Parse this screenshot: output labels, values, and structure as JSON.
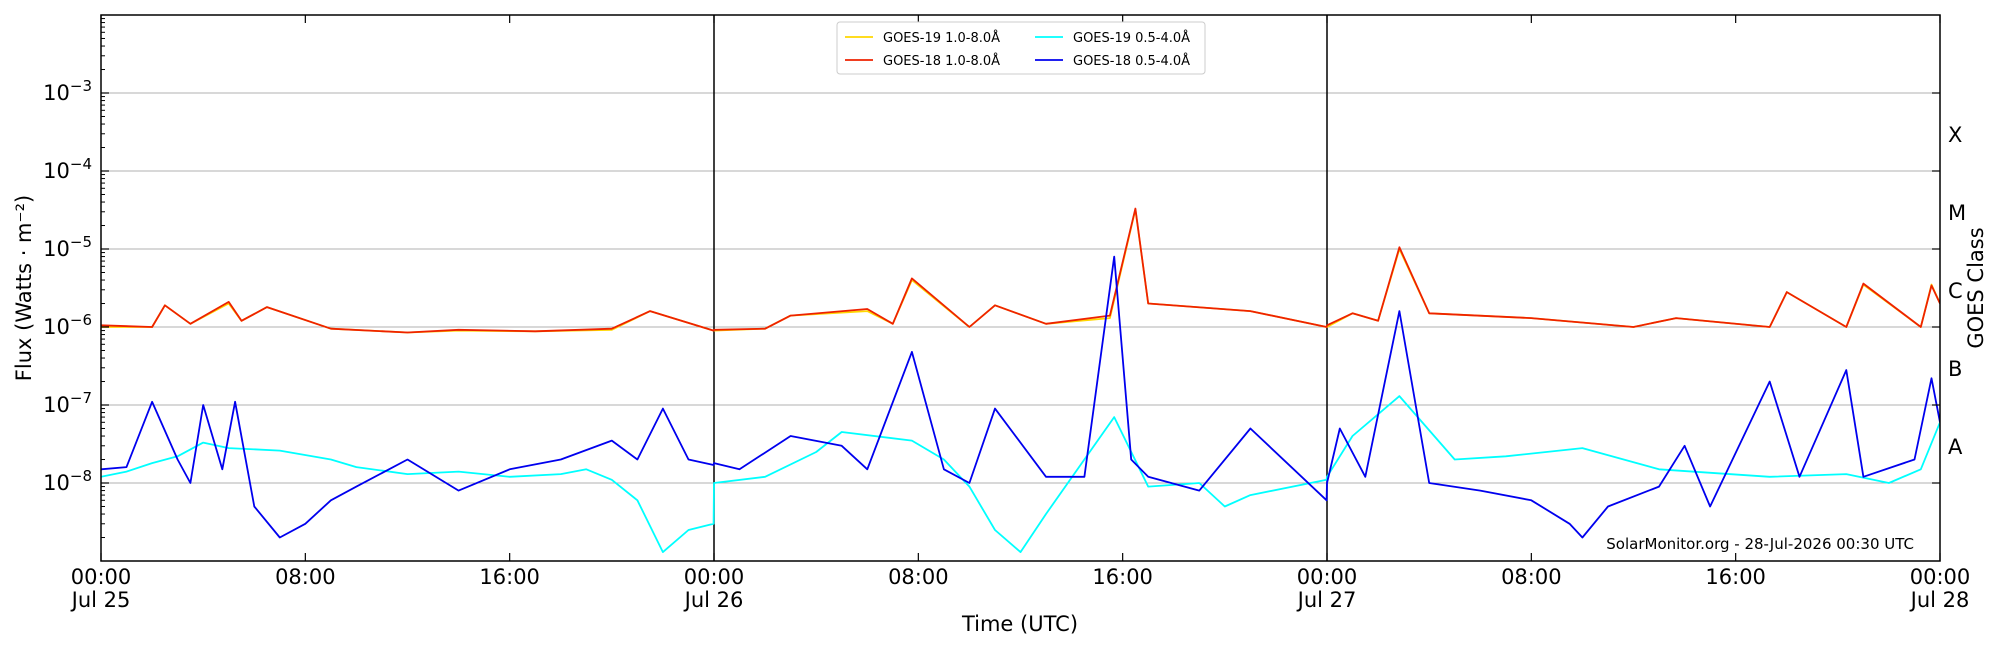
{
  "chart_data": {
    "type": "line",
    "title": "",
    "xlabel": "Time (UTC)",
    "ylabel": "Flux (Watts · m⁻²)",
    "y2label": "GOES Class",
    "yscale": "log",
    "ylim": [
      1e-09,
      0.01
    ],
    "xlim": [
      "2026-07-25 00:00",
      "2026-07-28 00:00"
    ],
    "grid": "horizontal",
    "legend_position": "top-center",
    "credit": "SolarMonitor.org - 28-Jul-2026 00:30 UTC",
    "x_ticks": [
      {
        "t": "2026-07-25 00:00",
        "line1": "00:00",
        "line2": "Jul 25"
      },
      {
        "t": "2026-07-25 08:00",
        "line1": "08:00",
        "line2": ""
      },
      {
        "t": "2026-07-25 16:00",
        "line1": "16:00",
        "line2": ""
      },
      {
        "t": "2026-07-26 00:00",
        "line1": "00:00",
        "line2": "Jul 26"
      },
      {
        "t": "2026-07-26 08:00",
        "line1": "08:00",
        "line2": ""
      },
      {
        "t": "2026-07-26 16:00",
        "line1": "16:00",
        "line2": ""
      },
      {
        "t": "2026-07-27 00:00",
        "line1": "00:00",
        "line2": "Jul 27"
      },
      {
        "t": "2026-07-27 08:00",
        "line1": "08:00",
        "line2": ""
      },
      {
        "t": "2026-07-27 16:00",
        "line1": "16:00",
        "line2": ""
      },
      {
        "t": "2026-07-28 00:00",
        "line1": "00:00",
        "line2": "Jul 28"
      }
    ],
    "day_boundaries": [
      "2026-07-26 00:00",
      "2026-07-27 00:00"
    ],
    "y_ticks": [
      {
        "value": 1e-08,
        "base": "10",
        "exp": "−8"
      },
      {
        "value": 1e-07,
        "base": "10",
        "exp": "−7"
      },
      {
        "value": 1e-06,
        "base": "10",
        "exp": "−6"
      },
      {
        "value": 1e-05,
        "base": "10",
        "exp": "−5"
      },
      {
        "value": 0.0001,
        "base": "10",
        "exp": "−4"
      },
      {
        "value": 0.001,
        "base": "10",
        "exp": "−3"
      }
    ],
    "goes_classes": [
      {
        "label": "A",
        "value": 3e-08
      },
      {
        "label": "B",
        "value": 3e-07
      },
      {
        "label": "C",
        "value": 3e-06
      },
      {
        "label": "M",
        "value": 3e-05
      },
      {
        "label": "X",
        "value": 0.0003
      }
    ],
    "series": [
      {
        "name": "GOES-19 1.0-8.0Å",
        "color": "#ffd700",
        "order": 0,
        "t": [
          "2026-07-25 00:00",
          "2026-07-25 02:00",
          "2026-07-25 02:30",
          "2026-07-25 03:30",
          "2026-07-25 05:00",
          "2026-07-25 05:30",
          "2026-07-25 06:30",
          "2026-07-25 09:00",
          "2026-07-25 12:00",
          "2026-07-25 14:00",
          "2026-07-25 17:00",
          "2026-07-25 20:00",
          "2026-07-25 21:30",
          "2026-07-25 23:59",
          "2026-07-26 00:00",
          "2026-07-26 02:00",
          "2026-07-26 03:00",
          "2026-07-26 06:00",
          "2026-07-26 07:00",
          "2026-07-26 07:45",
          "2026-07-26 10:00",
          "2026-07-26 11:00",
          "2026-07-26 13:00",
          "2026-07-26 15:30",
          "2026-07-26 16:30",
          "2026-07-26 17:00",
          "2026-07-26 21:00",
          "2026-07-26 23:59",
          "2026-07-27 00:00",
          "2026-07-27 01:00",
          "2026-07-27 02:00",
          "2026-07-27 02:50",
          "2026-07-27 04:00",
          "2026-07-27 08:00",
          "2026-07-27 12:00",
          "2026-07-27 13:40",
          "2026-07-27 17:20",
          "2026-07-27 18:00",
          "2026-07-27 20:20",
          "2026-07-27 21:00",
          "2026-07-27 23:15",
          "2026-07-27 23:40",
          "2026-07-28 00:00"
        ],
        "values": [
          1e-06,
          1e-06,
          1.9e-06,
          1.1e-06,
          2e-06,
          1.2e-06,
          1.8e-06,
          9.5e-07,
          8.5e-07,
          9e-07,
          8.8e-07,
          9.2e-07,
          1.6e-06,
          9e-07,
          9e-07,
          9.5e-07,
          1.4e-06,
          1.6e-06,
          1.1e-06,
          4e-06,
          1e-06,
          1.9e-06,
          1.1e-06,
          1.3e-06,
          3.2e-05,
          2e-06,
          1.6e-06,
          1e-06,
          1e-06,
          1.5e-06,
          1.2e-06,
          1e-05,
          1.5e-06,
          1.3e-06,
          1e-06,
          1.3e-06,
          1e-06,
          2.8e-06,
          1e-06,
          3.5e-06,
          1e-06,
          3.5e-06,
          2e-06
        ]
      },
      {
        "name": "GOES-18 1.0-8.0Å",
        "color": "#ee2200",
        "order": 2,
        "t": [
          "2026-07-25 00:00",
          "2026-07-25 02:00",
          "2026-07-25 02:30",
          "2026-07-25 03:30",
          "2026-07-25 05:00",
          "2026-07-25 05:30",
          "2026-07-25 06:30",
          "2026-07-25 09:00",
          "2026-07-25 12:00",
          "2026-07-25 14:00",
          "2026-07-25 17:00",
          "2026-07-25 20:00",
          "2026-07-25 21:30",
          "2026-07-25 23:59",
          "2026-07-26 00:00",
          "2026-07-26 02:00",
          "2026-07-26 03:00",
          "2026-07-26 06:00",
          "2026-07-26 07:00",
          "2026-07-26 07:45",
          "2026-07-26 10:00",
          "2026-07-26 11:00",
          "2026-07-26 13:00",
          "2026-07-26 15:30",
          "2026-07-26 16:30",
          "2026-07-26 17:00",
          "2026-07-26 21:00",
          "2026-07-26 23:59",
          "2026-07-27 00:00",
          "2026-07-27 01:00",
          "2026-07-27 02:00",
          "2026-07-27 02:50",
          "2026-07-27 04:00",
          "2026-07-27 08:00",
          "2026-07-27 12:00",
          "2026-07-27 13:40",
          "2026-07-27 17:20",
          "2026-07-27 18:00",
          "2026-07-27 20:20",
          "2026-07-27 21:00",
          "2026-07-27 23:15",
          "2026-07-27 23:40",
          "2026-07-28 00:00"
        ],
        "values": [
          1.05e-06,
          1e-06,
          1.9e-06,
          1.1e-06,
          2.1e-06,
          1.2e-06,
          1.8e-06,
          9.5e-07,
          8.5e-07,
          9.2e-07,
          8.8e-07,
          9.5e-07,
          1.6e-06,
          9e-07,
          9.2e-07,
          9.5e-07,
          1.4e-06,
          1.7e-06,
          1.1e-06,
          4.2e-06,
          1e-06,
          1.9e-06,
          1.1e-06,
          1.4e-06,
          3.3e-05,
          2e-06,
          1.6e-06,
          1e-06,
          1.05e-06,
          1.5e-06,
          1.2e-06,
          1.05e-05,
          1.5e-06,
          1.3e-06,
          1e-06,
          1.3e-06,
          1e-06,
          2.8e-06,
          1e-06,
          3.6e-06,
          1e-06,
          3.4e-06,
          2e-06
        ]
      },
      {
        "name": "GOES-19 0.5-4.0Å",
        "color": "#00ffff",
        "order": 1,
        "t": [
          "2026-07-25 00:00",
          "2026-07-25 01:00",
          "2026-07-25 02:00",
          "2026-07-25 03:00",
          "2026-07-25 04:00",
          "2026-07-25 05:00",
          "2026-07-25 07:00",
          "2026-07-25 09:00",
          "2026-07-25 10:00",
          "2026-07-25 12:00",
          "2026-07-25 14:00",
          "2026-07-25 16:00",
          "2026-07-25 18:00",
          "2026-07-25 19:00",
          "2026-07-25 20:00",
          "2026-07-25 21:00",
          "2026-07-25 22:00",
          "2026-07-25 23:00",
          "2026-07-25 23:59",
          "2026-07-26 00:00",
          "2026-07-26 02:00",
          "2026-07-26 04:00",
          "2026-07-26 05:00",
          "2026-07-26 07:45",
          "2026-07-26 09:00",
          "2026-07-26 10:00",
          "2026-07-26 11:00",
          "2026-07-26 12:00",
          "2026-07-26 13:00",
          "2026-07-26 15:40",
          "2026-07-26 17:00",
          "2026-07-26 19:00",
          "2026-07-26 20:00",
          "2026-07-26 21:00",
          "2026-07-26 23:59",
          "2026-07-27 00:00",
          "2026-07-27 01:00",
          "2026-07-27 02:50",
          "2026-07-27 05:00",
          "2026-07-27 07:00",
          "2026-07-27 10:00",
          "2026-07-27 13:00",
          "2026-07-27 17:20",
          "2026-07-27 20:20",
          "2026-07-27 22:00",
          "2026-07-27 23:15",
          "2026-07-28 00:00"
        ],
        "values": [
          1.2e-08,
          1.4e-08,
          1.8e-08,
          2.2e-08,
          3.3e-08,
          2.8e-08,
          2.6e-08,
          2e-08,
          1.6e-08,
          1.3e-08,
          1.4e-08,
          1.2e-08,
          1.3e-08,
          1.5e-08,
          1.1e-08,
          6e-09,
          1.3e-09,
          2.5e-09,
          3e-09,
          1e-08,
          1.2e-08,
          2.5e-08,
          4.5e-08,
          3.5e-08,
          2e-08,
          9e-09,
          2.5e-09,
          1.3e-09,
          4e-09,
          7e-08,
          9e-09,
          1e-08,
          5e-09,
          7e-09,
          1.1e-08,
          1.2e-08,
          4e-08,
          1.3e-07,
          2e-08,
          2.2e-08,
          2.8e-08,
          1.5e-08,
          1.2e-08,
          1.3e-08,
          1e-08,
          1.5e-08,
          6e-08
        ]
      },
      {
        "name": "GOES-18 0.5-4.0Å",
        "color": "#0000ee",
        "order": 3,
        "t": [
          "2026-07-25 00:00",
          "2026-07-25 01:00",
          "2026-07-25 02:00",
          "2026-07-25 03:00",
          "2026-07-25 03:30",
          "2026-07-25 04:00",
          "2026-07-25 04:45",
          "2026-07-25 05:15",
          "2026-07-25 06:00",
          "2026-07-25 07:00",
          "2026-07-25 08:00",
          "2026-07-25 09:00",
          "2026-07-25 10:00",
          "2026-07-25 12:00",
          "2026-07-25 14:00",
          "2026-07-25 16:00",
          "2026-07-25 18:00",
          "2026-07-25 20:00",
          "2026-07-25 21:00",
          "2026-07-25 22:00",
          "2026-07-25 23:00",
          "2026-07-25 23:59",
          "2026-07-26 00:00",
          "2026-07-26 01:00",
          "2026-07-26 03:00",
          "2026-07-26 05:00",
          "2026-07-26 06:00",
          "2026-07-26 07:45",
          "2026-07-26 09:00",
          "2026-07-26 10:00",
          "2026-07-26 11:00",
          "2026-07-26 13:00",
          "2026-07-26 14:30",
          "2026-07-26 15:40",
          "2026-07-26 16:20",
          "2026-07-26 17:00",
          "2026-07-26 19:00",
          "2026-07-26 21:00",
          "2026-07-26 23:59",
          "2026-07-27 00:00",
          "2026-07-27 00:30",
          "2026-07-27 01:30",
          "2026-07-27 02:50",
          "2026-07-27 04:00",
          "2026-07-27 06:00",
          "2026-07-27 08:00",
          "2026-07-27 09:30",
          "2026-07-27 10:00",
          "2026-07-27 11:00",
          "2026-07-27 13:00",
          "2026-07-27 14:00",
          "2026-07-27 15:00",
          "2026-07-27 17:20",
          "2026-07-27 18:30",
          "2026-07-27 20:20",
          "2026-07-27 21:00",
          "2026-07-27 23:00",
          "2026-07-27 23:40",
          "2026-07-28 00:00"
        ],
        "values": [
          1.5e-08,
          1.6e-08,
          1.1e-07,
          2e-08,
          1e-08,
          1e-07,
          1.5e-08,
          1.1e-07,
          5e-09,
          2e-09,
          3e-09,
          6e-09,
          9e-09,
          2e-08,
          8e-09,
          1.5e-08,
          2e-08,
          3.5e-08,
          2e-08,
          9e-08,
          2e-08,
          1.7e-08,
          1.8e-08,
          1.5e-08,
          4e-08,
          3e-08,
          1.5e-08,
          4.8e-07,
          1.5e-08,
          1e-08,
          9e-08,
          1.2e-08,
          1.2e-08,
          8e-06,
          2e-08,
          1.2e-08,
          8e-09,
          5e-08,
          6e-09,
          1e-08,
          5e-08,
          1.2e-08,
          1.6e-06,
          1e-08,
          8e-09,
          6e-09,
          3e-09,
          2e-09,
          5e-09,
          9e-09,
          3e-08,
          5e-09,
          2e-07,
          1.2e-08,
          2.8e-07,
          1.2e-08,
          2e-08,
          2.2e-07,
          6e-08
        ]
      }
    ]
  }
}
